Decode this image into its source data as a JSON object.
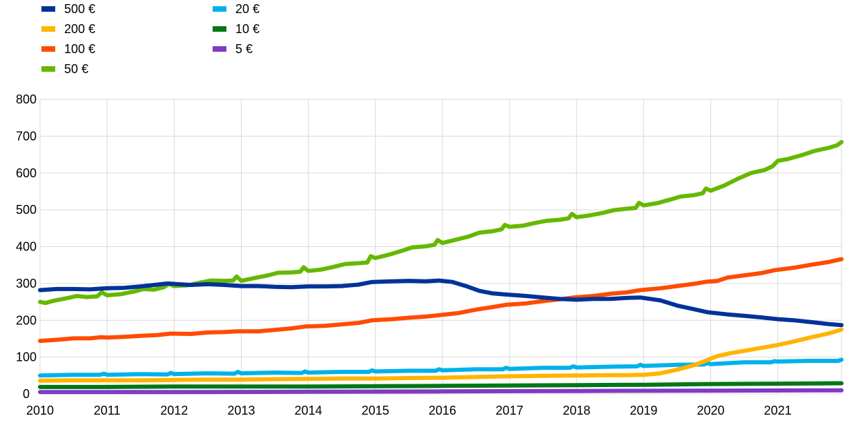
{
  "chart_data": {
    "type": "line",
    "title": "",
    "xlabel": "",
    "ylabel": "",
    "ylim": [
      0,
      800
    ],
    "yticks": [
      0,
      100,
      200,
      300,
      400,
      500,
      600,
      700,
      800
    ],
    "xlim": [
      2010.0,
      2021.95
    ],
    "xticks": [
      2010,
      2011,
      2012,
      2013,
      2014,
      2015,
      2016,
      2017,
      2018,
      2019,
      2020,
      2021
    ],
    "grid": "vertical and horizontal",
    "legend_position": "top-left",
    "series": [
      {
        "name": "500 €",
        "color": "#003299",
        "points": [
          [
            2010.0,
            282
          ],
          [
            2010.25,
            285
          ],
          [
            2010.5,
            285
          ],
          [
            2010.75,
            284
          ],
          [
            2011.0,
            287
          ],
          [
            2011.25,
            288
          ],
          [
            2011.5,
            292
          ],
          [
            2011.75,
            297
          ],
          [
            2011.9,
            300
          ],
          [
            2012.25,
            296
          ],
          [
            2012.5,
            298
          ],
          [
            2012.75,
            296
          ],
          [
            2013.0,
            293
          ],
          [
            2013.25,
            293
          ],
          [
            2013.5,
            291
          ],
          [
            2013.75,
            290
          ],
          [
            2014.0,
            292
          ],
          [
            2014.25,
            292
          ],
          [
            2014.5,
            293
          ],
          [
            2014.75,
            297
          ],
          [
            2014.95,
            304
          ],
          [
            2015.25,
            306
          ],
          [
            2015.5,
            307
          ],
          [
            2015.75,
            306
          ],
          [
            2015.95,
            308
          ],
          [
            2016.15,
            304
          ],
          [
            2016.35,
            293
          ],
          [
            2016.55,
            280
          ],
          [
            2016.75,
            273
          ],
          [
            2016.95,
            270
          ],
          [
            2017.25,
            266
          ],
          [
            2017.5,
            262
          ],
          [
            2017.75,
            258
          ],
          [
            2018.0,
            256
          ],
          [
            2018.25,
            258
          ],
          [
            2018.5,
            258
          ],
          [
            2018.75,
            261
          ],
          [
            2018.95,
            262
          ],
          [
            2019.25,
            254
          ],
          [
            2019.5,
            240
          ],
          [
            2019.75,
            230
          ],
          [
            2019.95,
            222
          ],
          [
            2020.25,
            216
          ],
          [
            2020.5,
            212
          ],
          [
            2020.75,
            208
          ],
          [
            2021.0,
            203
          ],
          [
            2021.25,
            200
          ],
          [
            2021.5,
            195
          ],
          [
            2021.75,
            190
          ],
          [
            2021.95,
            187
          ]
        ]
      },
      {
        "name": "200 €",
        "color": "#ffb400",
        "points": [
          [
            2010.0,
            36
          ],
          [
            2010.5,
            37
          ],
          [
            2011.0,
            37
          ],
          [
            2011.5,
            37
          ],
          [
            2012.0,
            38
          ],
          [
            2012.5,
            39
          ],
          [
            2013.0,
            39
          ],
          [
            2013.5,
            40
          ],
          [
            2014.0,
            41
          ],
          [
            2014.5,
            42
          ],
          [
            2015.0,
            42
          ],
          [
            2015.5,
            43
          ],
          [
            2016.0,
            44
          ],
          [
            2016.5,
            46
          ],
          [
            2017.0,
            48
          ],
          [
            2017.5,
            49
          ],
          [
            2018.0,
            50
          ],
          [
            2018.5,
            51
          ],
          [
            2018.75,
            51
          ],
          [
            2019.0,
            52
          ],
          [
            2019.25,
            56
          ],
          [
            2019.5,
            66
          ],
          [
            2019.75,
            78
          ],
          [
            2019.95,
            92
          ],
          [
            2020.1,
            103
          ],
          [
            2020.3,
            111
          ],
          [
            2020.5,
            117
          ],
          [
            2020.75,
            125
          ],
          [
            2021.0,
            133
          ],
          [
            2021.25,
            143
          ],
          [
            2021.5,
            154
          ],
          [
            2021.75,
            164
          ],
          [
            2021.95,
            175
          ]
        ]
      },
      {
        "name": "100 €",
        "color": "#ff4b00",
        "points": [
          [
            2010.0,
            144
          ],
          [
            2010.25,
            147
          ],
          [
            2010.5,
            151
          ],
          [
            2010.75,
            151
          ],
          [
            2010.9,
            154
          ],
          [
            2011.0,
            153
          ],
          [
            2011.25,
            155
          ],
          [
            2011.5,
            158
          ],
          [
            2011.75,
            160
          ],
          [
            2011.95,
            164
          ],
          [
            2012.25,
            163
          ],
          [
            2012.5,
            167
          ],
          [
            2012.75,
            168
          ],
          [
            2012.95,
            170
          ],
          [
            2013.25,
            170
          ],
          [
            2013.5,
            174
          ],
          [
            2013.75,
            178
          ],
          [
            2013.95,
            183
          ],
          [
            2014.25,
            185
          ],
          [
            2014.5,
            189
          ],
          [
            2014.75,
            193
          ],
          [
            2014.95,
            200
          ],
          [
            2015.25,
            203
          ],
          [
            2015.5,
            207
          ],
          [
            2015.75,
            210
          ],
          [
            2015.95,
            214
          ],
          [
            2016.25,
            220
          ],
          [
            2016.5,
            229
          ],
          [
            2016.75,
            236
          ],
          [
            2016.95,
            242
          ],
          [
            2017.25,
            246
          ],
          [
            2017.5,
            252
          ],
          [
            2017.75,
            257
          ],
          [
            2017.95,
            262
          ],
          [
            2018.25,
            266
          ],
          [
            2018.5,
            272
          ],
          [
            2018.75,
            276
          ],
          [
            2018.95,
            282
          ],
          [
            2019.25,
            287
          ],
          [
            2019.5,
            293
          ],
          [
            2019.75,
            299
          ],
          [
            2019.95,
            305
          ],
          [
            2020.1,
            307
          ],
          [
            2020.25,
            316
          ],
          [
            2020.5,
            322
          ],
          [
            2020.75,
            328
          ],
          [
            2020.95,
            336
          ],
          [
            2021.25,
            343
          ],
          [
            2021.5,
            351
          ],
          [
            2021.75,
            358
          ],
          [
            2021.95,
            366
          ]
        ]
      },
      {
        "name": "50 €",
        "color": "#65b800",
        "points": [
          [
            2010.0,
            250
          ],
          [
            2010.08,
            247
          ],
          [
            2010.2,
            253
          ],
          [
            2010.4,
            260
          ],
          [
            2010.55,
            266
          ],
          [
            2010.7,
            263
          ],
          [
            2010.85,
            265
          ],
          [
            2010.92,
            276
          ],
          [
            2011.0,
            268
          ],
          [
            2011.2,
            271
          ],
          [
            2011.4,
            278
          ],
          [
            2011.55,
            285
          ],
          [
            2011.7,
            283
          ],
          [
            2011.85,
            290
          ],
          [
            2011.92,
            299
          ],
          [
            2012.0,
            293
          ],
          [
            2012.2,
            295
          ],
          [
            2012.4,
            303
          ],
          [
            2012.55,
            308
          ],
          [
            2012.75,
            307
          ],
          [
            2012.88,
            308
          ],
          [
            2012.93,
            319
          ],
          [
            2013.0,
            307
          ],
          [
            2013.2,
            315
          ],
          [
            2013.4,
            322
          ],
          [
            2013.55,
            329
          ],
          [
            2013.75,
            330
          ],
          [
            2013.88,
            332
          ],
          [
            2013.93,
            344
          ],
          [
            2014.0,
            334
          ],
          [
            2014.2,
            338
          ],
          [
            2014.4,
            346
          ],
          [
            2014.55,
            353
          ],
          [
            2014.75,
            355
          ],
          [
            2014.88,
            357
          ],
          [
            2014.93,
            374
          ],
          [
            2015.0,
            369
          ],
          [
            2015.2,
            378
          ],
          [
            2015.4,
            389
          ],
          [
            2015.55,
            398
          ],
          [
            2015.75,
            401
          ],
          [
            2015.88,
            405
          ],
          [
            2015.93,
            418
          ],
          [
            2016.0,
            410
          ],
          [
            2016.2,
            419
          ],
          [
            2016.4,
            428
          ],
          [
            2016.55,
            438
          ],
          [
            2016.75,
            442
          ],
          [
            2016.88,
            447
          ],
          [
            2016.93,
            459
          ],
          [
            2017.0,
            454
          ],
          [
            2017.2,
            457
          ],
          [
            2017.4,
            465
          ],
          [
            2017.55,
            470
          ],
          [
            2017.75,
            473
          ],
          [
            2017.88,
            477
          ],
          [
            2017.93,
            489
          ],
          [
            2018.0,
            480
          ],
          [
            2018.2,
            485
          ],
          [
            2018.4,
            492
          ],
          [
            2018.55,
            499
          ],
          [
            2018.75,
            503
          ],
          [
            2018.88,
            505
          ],
          [
            2018.93,
            519
          ],
          [
            2019.0,
            512
          ],
          [
            2019.2,
            518
          ],
          [
            2019.4,
            528
          ],
          [
            2019.55,
            536
          ],
          [
            2019.75,
            540
          ],
          [
            2019.88,
            545
          ],
          [
            2019.93,
            558
          ],
          [
            2020.0,
            552
          ],
          [
            2020.2,
            566
          ],
          [
            2020.4,
            584
          ],
          [
            2020.6,
            600
          ],
          [
            2020.8,
            608
          ],
          [
            2020.92,
            618
          ],
          [
            2021.0,
            633
          ],
          [
            2021.15,
            638
          ],
          [
            2021.35,
            648
          ],
          [
            2021.55,
            660
          ],
          [
            2021.75,
            668
          ],
          [
            2021.88,
            675
          ],
          [
            2021.95,
            684
          ]
        ]
      },
      {
        "name": "20 €",
        "color": "#00b1ea",
        "points": [
          [
            2010.0,
            50
          ],
          [
            2010.5,
            52
          ],
          [
            2010.9,
            52
          ],
          [
            2010.95,
            55
          ],
          [
            2011.0,
            52
          ],
          [
            2011.5,
            54
          ],
          [
            2011.9,
            53
          ],
          [
            2011.95,
            57
          ],
          [
            2012.0,
            54
          ],
          [
            2012.5,
            56
          ],
          [
            2012.9,
            55
          ],
          [
            2012.95,
            60
          ],
          [
            2013.0,
            56
          ],
          [
            2013.5,
            58
          ],
          [
            2013.9,
            57
          ],
          [
            2013.95,
            61
          ],
          [
            2014.0,
            58
          ],
          [
            2014.5,
            60
          ],
          [
            2014.9,
            60
          ],
          [
            2014.95,
            64
          ],
          [
            2015.0,
            61
          ],
          [
            2015.5,
            63
          ],
          [
            2015.9,
            63
          ],
          [
            2015.95,
            67
          ],
          [
            2016.0,
            64
          ],
          [
            2016.5,
            67
          ],
          [
            2016.9,
            67
          ],
          [
            2016.95,
            71
          ],
          [
            2017.0,
            68
          ],
          [
            2017.5,
            71
          ],
          [
            2017.9,
            71
          ],
          [
            2017.95,
            75
          ],
          [
            2018.0,
            72
          ],
          [
            2018.5,
            74
          ],
          [
            2018.9,
            75
          ],
          [
            2018.95,
            79
          ],
          [
            2019.0,
            76
          ],
          [
            2019.5,
            79
          ],
          [
            2019.9,
            80
          ],
          [
            2019.95,
            84
          ],
          [
            2020.0,
            81
          ],
          [
            2020.5,
            86
          ],
          [
            2020.9,
            86
          ],
          [
            2020.95,
            89
          ],
          [
            2021.0,
            88
          ],
          [
            2021.5,
            90
          ],
          [
            2021.9,
            90
          ],
          [
            2021.95,
            93
          ]
        ]
      },
      {
        "name": "10 €",
        "color": "#007816",
        "points": [
          [
            2010.0,
            19
          ],
          [
            2011.0,
            19
          ],
          [
            2012.0,
            20
          ],
          [
            2013.0,
            20
          ],
          [
            2014.0,
            20
          ],
          [
            2015.0,
            21
          ],
          [
            2016.0,
            22
          ],
          [
            2017.0,
            23
          ],
          [
            2018.0,
            24
          ],
          [
            2019.0,
            25
          ],
          [
            2020.0,
            27
          ],
          [
            2021.0,
            28
          ],
          [
            2021.95,
            29
          ]
        ]
      },
      {
        "name": "5 €",
        "color": "#8139c6",
        "points": [
          [
            2010.0,
            5
          ],
          [
            2012.0,
            5
          ],
          [
            2014.0,
            6
          ],
          [
            2016.0,
            7
          ],
          [
            2018.0,
            8
          ],
          [
            2020.0,
            9
          ],
          [
            2021.95,
            10
          ]
        ]
      }
    ]
  }
}
